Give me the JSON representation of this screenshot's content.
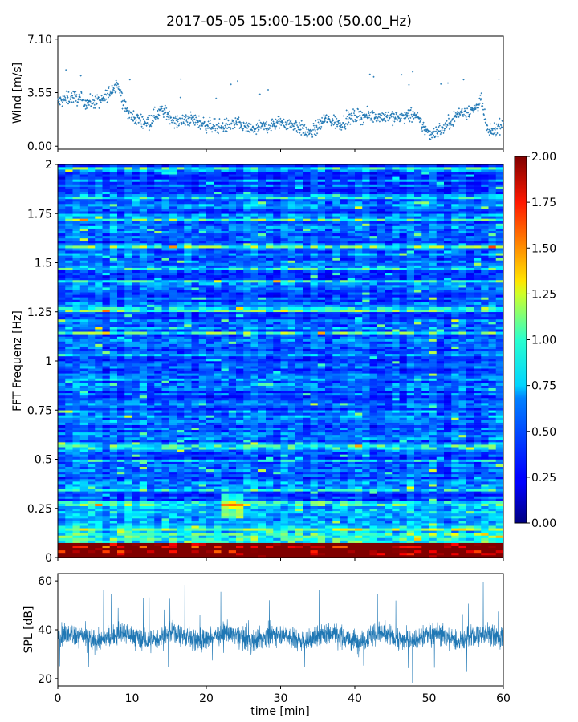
{
  "title": "2017-05-05 15:00-15:00 (50.00_Hz)",
  "chart_data": [
    {
      "type": "scatter",
      "ylabel": "Wind [m/s]",
      "ylim": [
        -0.2,
        7.3
      ],
      "xlim": [
        0,
        60
      ],
      "yticks": [
        "0.00",
        "3.55",
        "7.10"
      ],
      "ytick_values": [
        0,
        3.55,
        7.1
      ],
      "color": "#1f77b4",
      "description_points": [
        [
          0,
          2.9
        ],
        [
          2,
          3.3
        ],
        [
          4,
          2.9
        ],
        [
          6,
          3.0
        ],
        [
          8,
          4.2
        ],
        [
          9,
          2.6
        ],
        [
          10,
          1.9
        ],
        [
          12,
          1.6
        ],
        [
          14,
          2.4
        ],
        [
          16,
          1.6
        ],
        [
          18,
          1.8
        ],
        [
          20,
          1.4
        ],
        [
          22,
          1.3
        ],
        [
          24,
          1.5
        ],
        [
          26,
          1.1
        ],
        [
          28,
          1.3
        ],
        [
          30,
          1.6
        ],
        [
          32,
          1.4
        ],
        [
          34,
          0.8
        ],
        [
          36,
          1.8
        ],
        [
          38,
          1.5
        ],
        [
          40,
          2.0
        ],
        [
          42,
          2.0
        ],
        [
          44,
          2.0
        ],
        [
          46,
          1.9
        ],
        [
          48,
          2.1
        ],
        [
          50,
          0.8
        ],
        [
          52,
          1.2
        ],
        [
          54,
          2.2
        ],
        [
          56,
          2.4
        ],
        [
          57,
          3.0
        ],
        [
          58,
          0.8
        ],
        [
          60,
          1.5
        ]
      ]
    },
    {
      "type": "heatmap",
      "ylabel": "FFT Frequenz [Hz]",
      "xlim": [
        0,
        60
      ],
      "ylim": [
        0,
        2
      ],
      "yticks": [
        "0",
        "0.25",
        "0.5",
        "0.75",
        "1",
        "1.25",
        "1.5",
        "1.75",
        "2"
      ],
      "ytick_values": [
        0,
        0.25,
        0.5,
        0.75,
        1,
        1.25,
        1.5,
        1.75,
        2
      ],
      "colormap": "jet",
      "colorbar": {
        "range": [
          0,
          2
        ],
        "ticks": [
          "0.00",
          "0.25",
          "0.50",
          "0.75",
          "1.00",
          "1.25",
          "1.50",
          "1.75",
          "2.00"
        ],
        "tick_values": [
          0,
          0.25,
          0.5,
          0.75,
          1,
          1.25,
          1.5,
          1.75,
          2
        ]
      },
      "typical_level_high_freq": 0.3,
      "typical_level_low_freq": 1.8
    },
    {
      "type": "line",
      "ylabel": "SPL [dB]",
      "xlabel": "time [min]",
      "xlim": [
        0,
        60
      ],
      "ylim": [
        17,
        63
      ],
      "yticks": [
        "20",
        "40",
        "60"
      ],
      "ytick_values": [
        20,
        40,
        60
      ],
      "xticks": [
        "0",
        "10",
        "20",
        "30",
        "40",
        "50",
        "60"
      ],
      "xtick_values": [
        0,
        10,
        20,
        30,
        40,
        50,
        60
      ],
      "color": "#1f77b4",
      "mean_level": 37
    }
  ]
}
